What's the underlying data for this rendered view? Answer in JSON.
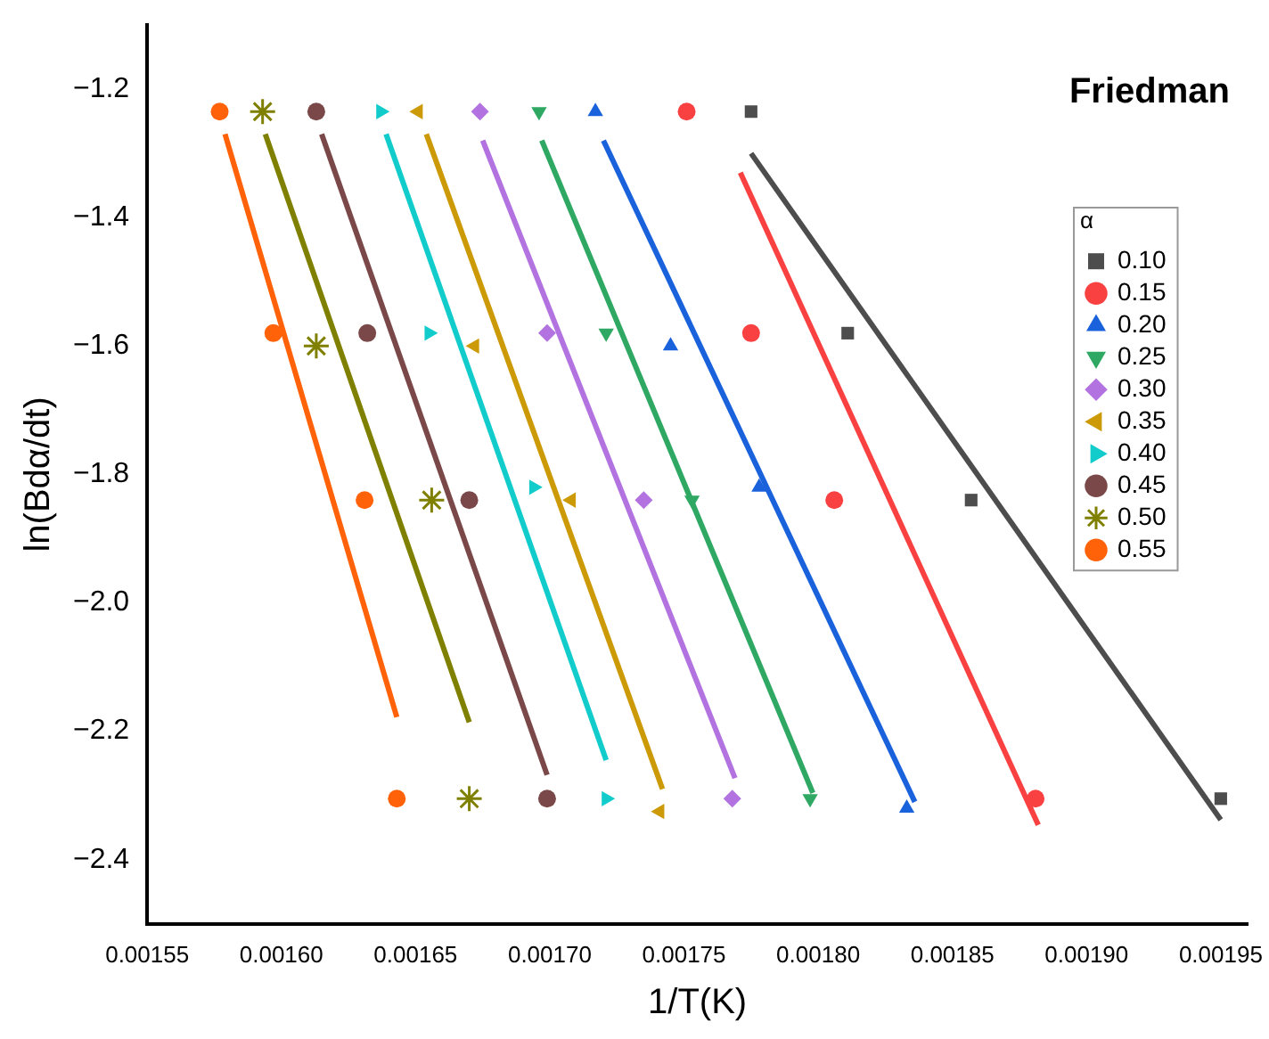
{
  "chart_data": {
    "type": "scatter",
    "xlabel": "1/T(K)",
    "ylabel": "ln(Bdα/dt)",
    "legend_title": "α",
    "legend": "top right",
    "grid": false,
    "annotations": [
      "Friedman"
    ],
    "xlim": [
      0.00155,
      0.00196
    ],
    "xticks": [
      0.00155,
      {
        "value": 0.0016,
        "label": "0.00160"
      },
      0.00165,
      {
        "value": 0.0017,
        "label": "0.00170"
      },
      0.00175,
      {
        "value": 0.0018,
        "label": "0.00180"
      },
      0.00185,
      {
        "value": 0.0019,
        "label": "0.00190"
      },
      0.00195
    ],
    "ylim": [
      -2.5,
      -1.1
    ],
    "yticks": [
      {
        "value": -2.4,
        "label": "−2.4"
      },
      {
        "value": -2.2,
        "label": "−2.2"
      },
      {
        "value": -2.0,
        "label": "−2.0"
      },
      {
        "value": -1.8,
        "label": "−1.8"
      },
      {
        "value": -1.6,
        "label": "−1.6"
      },
      {
        "value": -1.4,
        "label": "−1.4"
      },
      {
        "value": -1.2,
        "label": "−1.2"
      }
    ],
    "series": [
      {
        "name": "0.10",
        "color": "#4d4d4d",
        "marker": "square",
        "x": [
          0.001775,
          0.001811,
          0.001857,
          0.00195
        ],
        "values": [
          -1.235,
          -1.58,
          -1.84,
          -2.305
        ]
      },
      {
        "name": "0.15",
        "color": "#f94141",
        "marker": "circle",
        "x": [
          0.001751,
          0.001775,
          0.001806,
          0.001881
        ],
        "values": [
          -1.235,
          -1.58,
          -1.84,
          -2.305
        ]
      },
      {
        "name": "0.20",
        "color": "#1a62dc",
        "marker": "triangle",
        "x": [
          0.001717,
          0.001745,
          0.001778,
          0.001833
        ],
        "values": [
          -1.235,
          -1.6,
          -1.82,
          -2.32
        ]
      },
      {
        "name": "0.25",
        "color": "#2ea862",
        "marker": "triangle-down",
        "x": [
          0.001696,
          0.001721,
          0.001753,
          0.001797
        ],
        "values": [
          -1.235,
          -1.58,
          -1.84,
          -2.305
        ]
      },
      {
        "name": "0.30",
        "color": "#b273e0",
        "marker": "diamond",
        "x": [
          0.001674,
          0.001699,
          0.001735,
          0.001768
        ],
        "values": [
          -1.235,
          -1.58,
          -1.84,
          -2.305
        ]
      },
      {
        "name": "0.35",
        "color": "#cc9a06",
        "marker": "triangle-left",
        "x": [
          0.001651,
          0.001672,
          0.001708,
          0.001741
        ],
        "values": [
          -1.235,
          -1.6,
          -1.84,
          -2.325
        ]
      },
      {
        "name": "0.40",
        "color": "#12cccc",
        "marker": "triangle-right",
        "x": [
          0.001637,
          0.001655,
          0.001694,
          0.001721
        ],
        "values": [
          -1.235,
          -1.58,
          -1.82,
          -2.305
        ]
      },
      {
        "name": "0.45",
        "color": "#7a4848",
        "marker": "circle",
        "x": [
          0.001613,
          0.001632,
          0.00167,
          0.001699
        ],
        "values": [
          -1.235,
          -1.58,
          -1.84,
          -2.305
        ]
      },
      {
        "name": "0.50",
        "color": "#808000",
        "marker": "cross",
        "x": [
          0.001593,
          0.001613,
          0.001656,
          0.00167
        ],
        "values": [
          -1.235,
          -1.6,
          -1.84,
          -2.305
        ]
      },
      {
        "name": "0.55",
        "color": "#ff6208",
        "marker": "circle",
        "x": [
          0.001577,
          0.001597,
          0.001631,
          0.001643
        ],
        "values": [
          -1.235,
          -1.58,
          -1.84,
          -2.305
        ]
      },
      {
        "type": "line",
        "color": "#4d4d4d",
        "x": [
          0.001775,
          0.00195
        ],
        "values": [
          -1.3,
          -2.338
        ]
      },
      {
        "type": "line",
        "color": "#f94141",
        "x": [
          0.001771,
          0.001882
        ],
        "values": [
          -1.33,
          -2.346
        ]
      },
      {
        "type": "line",
        "color": "#1a62dc",
        "x": [
          0.00172,
          0.001836
        ],
        "values": [
          -1.28,
          -2.31
        ]
      },
      {
        "type": "line",
        "color": "#2ea862",
        "x": [
          0.001697,
          0.001798
        ],
        "values": [
          -1.28,
          -2.296
        ]
      },
      {
        "type": "line",
        "color": "#b273e0",
        "x": [
          0.001675,
          0.001769
        ],
        "values": [
          -1.28,
          -2.273
        ]
      },
      {
        "type": "line",
        "color": "#cc9a06",
        "x": [
          0.001654,
          0.001742
        ],
        "values": [
          -1.27,
          -2.29
        ]
      },
      {
        "type": "line",
        "color": "#12cccc",
        "x": [
          0.001639,
          0.001721
        ],
        "values": [
          -1.27,
          -2.245
        ]
      },
      {
        "type": "line",
        "color": "#7a4848",
        "x": [
          0.001615,
          0.001699
        ],
        "values": [
          -1.27,
          -2.268
        ]
      },
      {
        "type": "line",
        "color": "#808000",
        "x": [
          0.001594,
          0.00167
        ],
        "values": [
          -1.27,
          -2.186
        ]
      },
      {
        "type": "line",
        "color": "#ff6208",
        "x": [
          0.001579,
          0.001643
        ],
        "values": [
          -1.27,
          -2.178
        ]
      }
    ]
  }
}
